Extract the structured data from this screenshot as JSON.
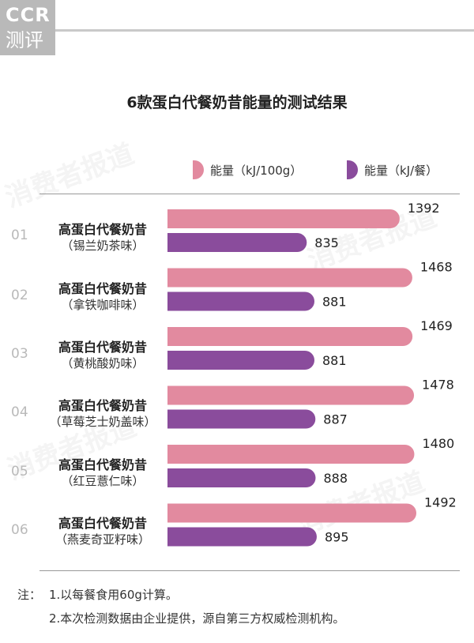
{
  "header": {
    "logo_line1": "CCR",
    "logo_line2": "测评"
  },
  "watermark": "消费者报道",
  "chart_data": {
    "type": "bar",
    "title": "6款蛋白代餐奶昔能量的测试结果",
    "categories": [
      {
        "index": "01",
        "name": "高蛋白代餐奶昔",
        "flavor": "（锡兰奶茶味）"
      },
      {
        "index": "02",
        "name": "高蛋白代餐奶昔",
        "flavor": "（拿铁咖啡味）"
      },
      {
        "index": "03",
        "name": "高蛋白代餐奶昔",
        "flavor": "（黄桃酸奶味）"
      },
      {
        "index": "04",
        "name": "高蛋白代餐奶昔",
        "flavor": "（草莓芝士奶盖味）"
      },
      {
        "index": "05",
        "name": "高蛋白代餐奶昔",
        "flavor": "（红豆薏仁味）"
      },
      {
        "index": "06",
        "name": "高蛋白代餐奶昔",
        "flavor": "（燕麦奇亚籽味）"
      }
    ],
    "series": [
      {
        "name": "能量（kJ/100g）",
        "color": "#e28a9f",
        "values": [
          1392,
          1468,
          1469,
          1478,
          1480,
          1492
        ]
      },
      {
        "name": "能量（kJ/餐）",
        "color": "#8a4c9c",
        "values": [
          835,
          881,
          881,
          887,
          888,
          895
        ]
      }
    ],
    "legend_position": "top-right",
    "grid": false
  },
  "notes": {
    "label": "注：",
    "items": [
      "1.以每餐食用60g计算。",
      "2.本次检测数据由企业提供，源自第三方权威检测机构。"
    ]
  }
}
